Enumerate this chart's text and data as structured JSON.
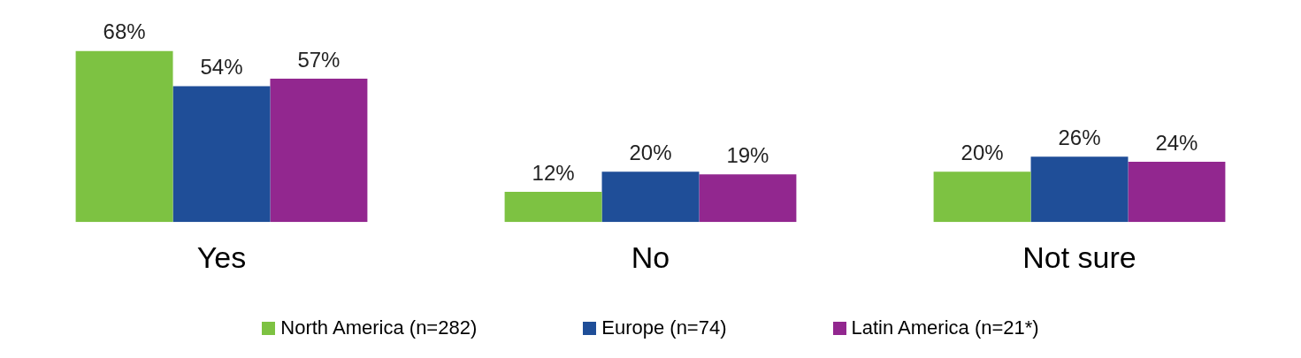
{
  "chart_data": {
    "type": "bar",
    "categories": [
      "Yes",
      "No",
      "Not sure"
    ],
    "series": [
      {
        "name": "North America (n=282)",
        "color": "#7dc242",
        "values": [
          68,
          12,
          20
        ],
        "value_labels": [
          "68%",
          "12%",
          "20%"
        ]
      },
      {
        "name": "Europe (n=74)",
        "color": "#1f4e98",
        "values": [
          54,
          20,
          26
        ],
        "value_labels": [
          "54%",
          "20%",
          "26%"
        ]
      },
      {
        "name": "Latin America (n=21*)",
        "color": "#92278f",
        "values": [
          57,
          19,
          24
        ],
        "value_labels": [
          "57%",
          "19%",
          "24%"
        ]
      }
    ],
    "legend": "bottom",
    "grid": false
  }
}
